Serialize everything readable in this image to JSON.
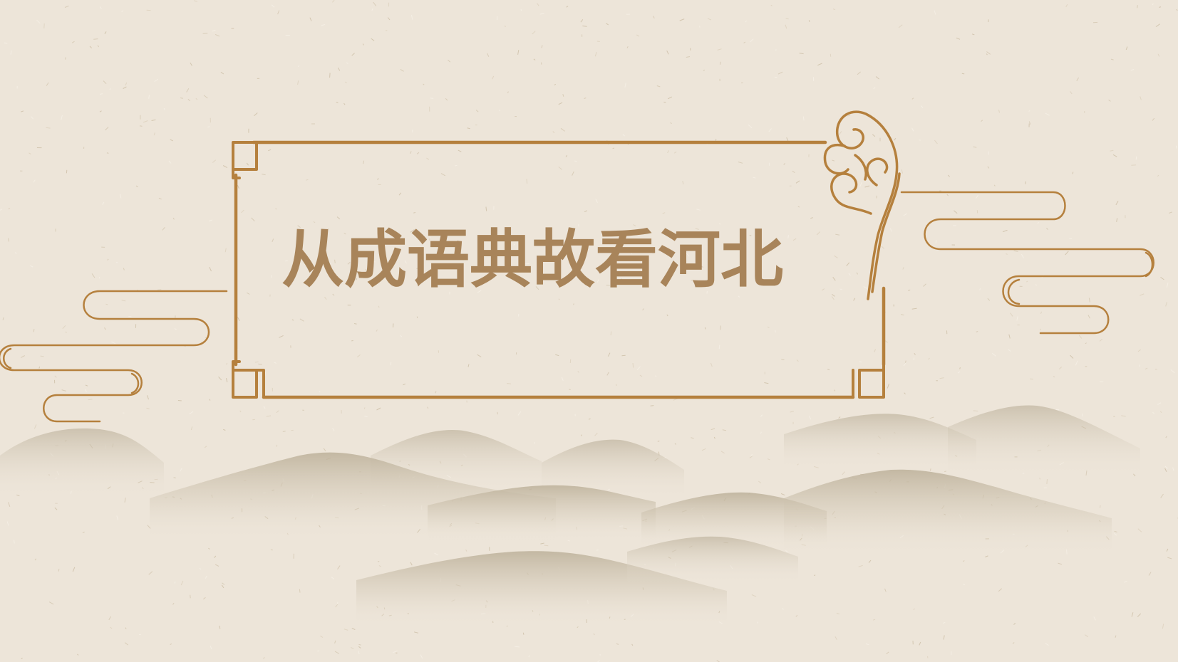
{
  "slide": {
    "title": "从成语典故看河北"
  },
  "colors": {
    "background": "#ede5d9",
    "frame": "#b5803d",
    "title": "#a8845a",
    "mountains": "#c7bba4"
  },
  "decorations": {
    "frame": "rectangular-frame-with-notched-square-corners",
    "cloud_ornament": "auspicious-cloud-scroll",
    "left_cloud_lines": "stylized-cloud-lines",
    "right_cloud_lines": "stylized-cloud-lines",
    "mountains": "misty-ink-mountains"
  }
}
